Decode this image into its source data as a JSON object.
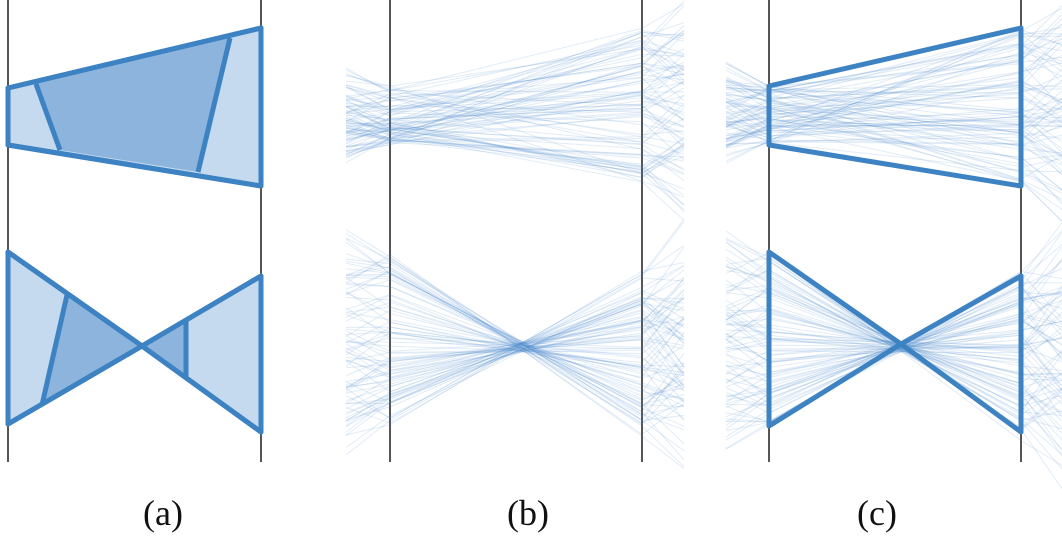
{
  "figure": {
    "panel_labels": [
      "(a)",
      "(b)",
      "(c)"
    ],
    "caption": "",
    "colors": {
      "stroke": "#3d82c2",
      "fill_light": "#c5daee",
      "fill_dark": "#8db4dc",
      "line": "#4a8ad0",
      "axis": "#555555"
    }
  }
}
